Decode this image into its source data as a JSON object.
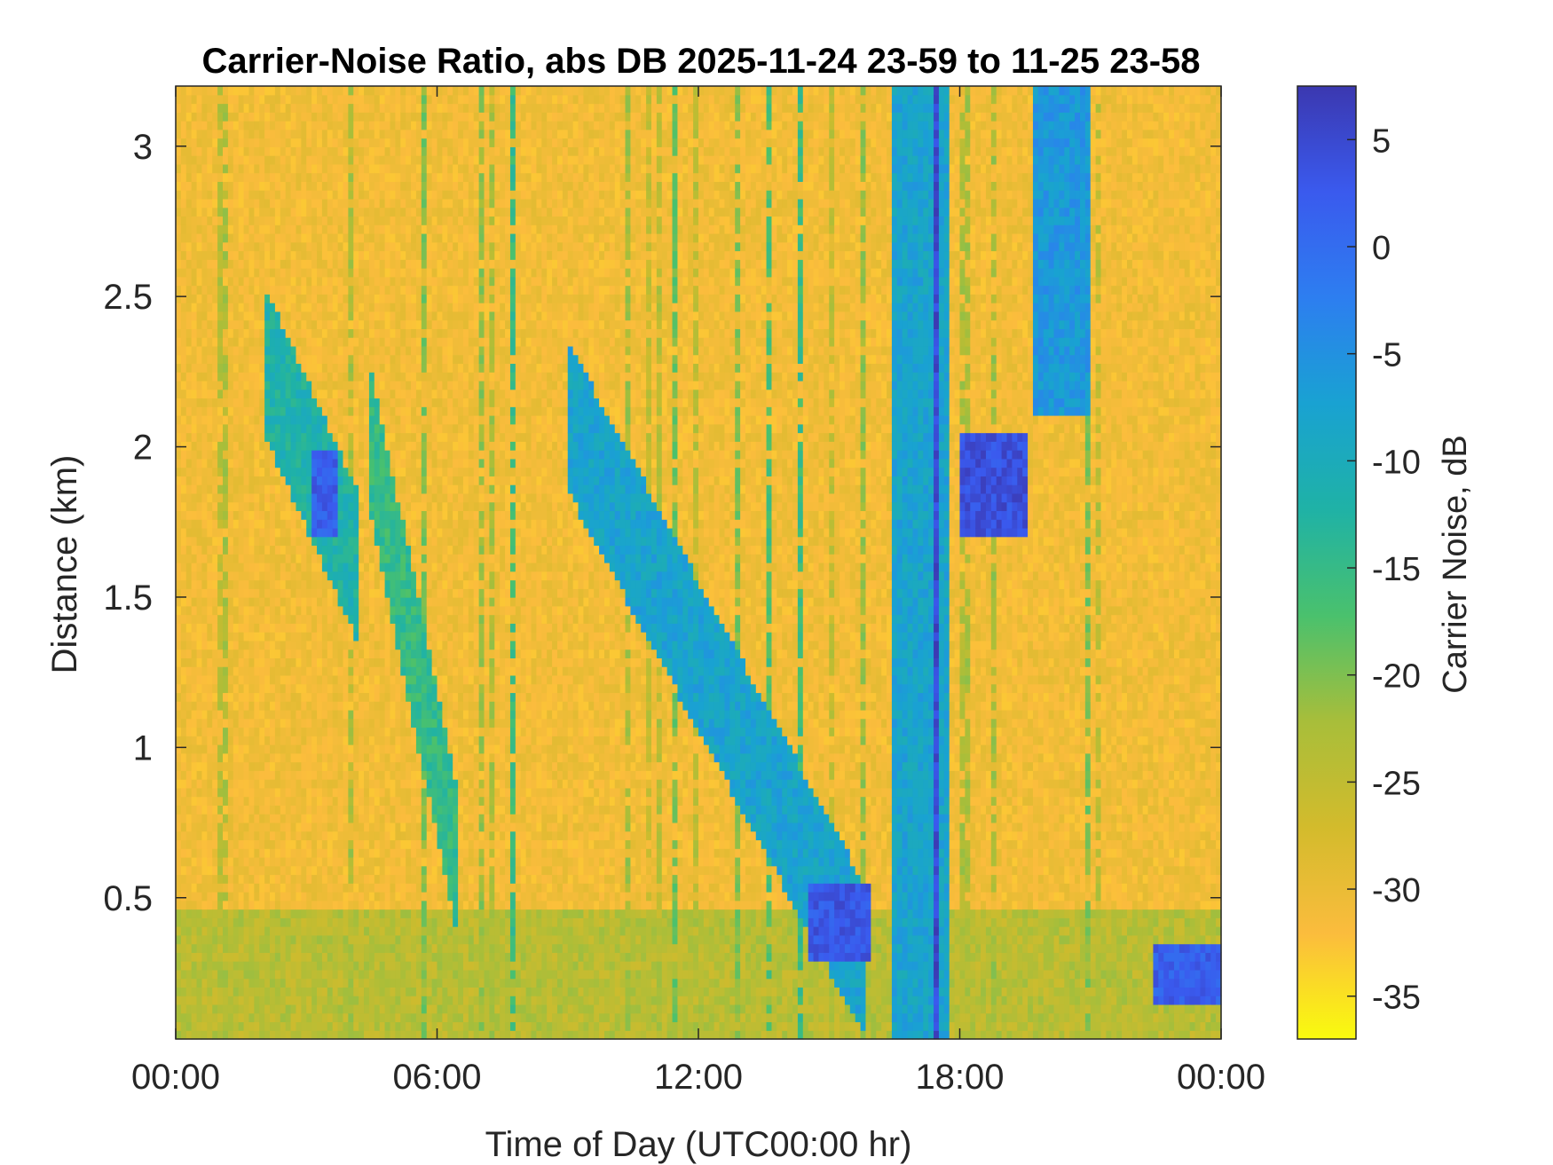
{
  "chart_data": {
    "type": "heatmap",
    "title": "Carrier-Noise Ratio, abs DB 2025-11-24 23-59 to 11-25 23-58",
    "xlabel": "Time of Day (UTC00:00 hr)",
    "ylabel": "Distance (km)",
    "x_range_hours": [
      0,
      24
    ],
    "x_ticks": [
      {
        "hour": 0,
        "label": "00:00"
      },
      {
        "hour": 6,
        "label": "06:00"
      },
      {
        "hour": 12,
        "label": "12:00"
      },
      {
        "hour": 18,
        "label": "18:00"
      },
      {
        "hour": 24,
        "label": "00:00"
      }
    ],
    "ylim": [
      0.03,
      3.2
    ],
    "y_ticks": [
      {
        "value": 0.5,
        "label": "0.5"
      },
      {
        "value": 1,
        "label": "1"
      },
      {
        "value": 1.5,
        "label": "1.5"
      },
      {
        "value": 2,
        "label": "2"
      },
      {
        "value": 2.5,
        "label": "2.5"
      },
      {
        "value": 3,
        "label": "3"
      }
    ],
    "colorbar": {
      "label": "Carrier Noise, dB",
      "range": [
        -37,
        7.5
      ],
      "ticks": [
        {
          "value": 5,
          "label": "5"
        },
        {
          "value": 0,
          "label": "0"
        },
        {
          "value": -5,
          "label": "-5"
        },
        {
          "value": -10,
          "label": "-10"
        },
        {
          "value": -15,
          "label": "-15"
        },
        {
          "value": -20,
          "label": "-20"
        },
        {
          "value": -25,
          "label": "-25"
        },
        {
          "value": -30,
          "label": "-30"
        },
        {
          "value": -35,
          "label": "-35"
        }
      ],
      "colors": [
        "#f9fb0e",
        "#fbbc3d",
        "#d3bb2c",
        "#a8be3a",
        "#4ac16d",
        "#1fb2a6",
        "#19a2d2",
        "#2d7ef0",
        "#3a5aee",
        "#3b38b0"
      ]
    },
    "background_value_db": -31,
    "features": [
      {
        "name": "early-morning plume 1",
        "time_start_h": 2.0,
        "time_end_h": 4.2,
        "dist_top_km": 2.3,
        "dist_bottom_km": 1.6,
        "value_db": -12
      },
      {
        "name": "dense core",
        "time_start_h": 3.1,
        "time_end_h": 3.7,
        "dist_top_km": 2.0,
        "dist_bottom_km": 1.7,
        "value_db": 2
      },
      {
        "name": "descending layer 06h",
        "time_start_h": 4.5,
        "time_end_h": 6.5,
        "dist_top_km": 2.0,
        "dist_bottom_km": 0.6,
        "value_db": -15
      },
      {
        "name": "descending layer 09-14h",
        "time_start_h": 9.0,
        "time_end_h": 15.8,
        "dist_top_km": 2.1,
        "dist_bottom_km": 0.3,
        "value_db": -8
      },
      {
        "name": "low layer peak 15h",
        "time_start_h": 14.5,
        "time_end_h": 16.0,
        "dist_top_km": 0.55,
        "dist_bottom_km": 0.28,
        "value_db": 3
      },
      {
        "name": "precipitation column",
        "time_start_h": 16.4,
        "time_end_h": 17.8,
        "dist_top_km": 3.2,
        "dist_bottom_km": 0.03,
        "value_db": -8
      },
      {
        "name": "strong column line",
        "time_start_h": 17.35,
        "time_end_h": 17.55,
        "dist_top_km": 3.2,
        "dist_bottom_km": 0.03,
        "value_db": 5
      },
      {
        "name": "arc 18-20h",
        "time_start_h": 18.0,
        "time_end_h": 19.5,
        "dist_top_km": 2.05,
        "dist_bottom_km": 1.7,
        "value_db": 4
      },
      {
        "name": "upper plume 20-21h",
        "time_start_h": 19.7,
        "time_end_h": 21.0,
        "dist_top_km": 3.2,
        "dist_bottom_km": 2.1,
        "value_db": -6
      },
      {
        "name": "low layer 22-24h",
        "time_start_h": 22.5,
        "time_end_h": 24.0,
        "dist_top_km": 0.35,
        "dist_bottom_km": 0.15,
        "value_db": 2
      },
      {
        "name": "near-surface band",
        "time_start_h": 0,
        "time_end_h": 24,
        "dist_top_km": 0.45,
        "dist_bottom_km": 0.03,
        "value_db": -24
      }
    ]
  }
}
